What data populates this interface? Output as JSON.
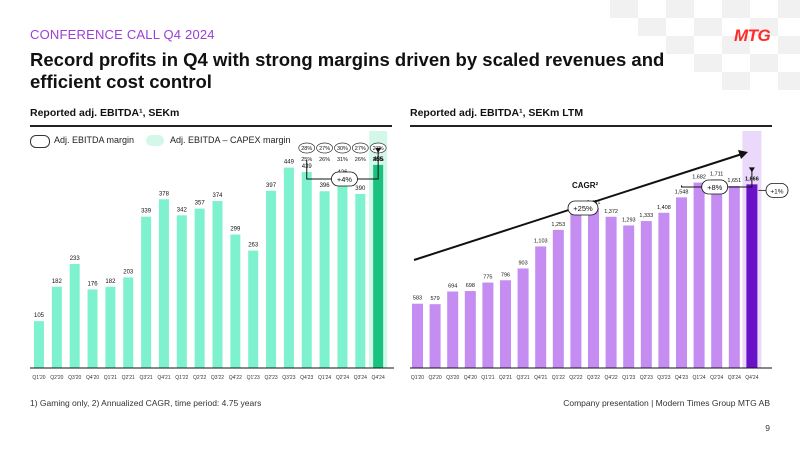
{
  "header": {
    "conference_label": "CONFERENCE CALL Q4 2024",
    "logo_text": "MTG",
    "headline": "Record profits in Q4 with strong margins driven by scaled revenues and efficient cost control"
  },
  "left_chart": {
    "title": "Reported adj. EBITDA¹, SEKm",
    "legend": [
      "Adj. EBITDA margin",
      "Adj. EBITDA – CAPEX margin"
    ],
    "margins_top": [
      "28%",
      "27%",
      "30%",
      "27%",
      "27%"
    ],
    "margins_bottom": [
      "25%",
      "26%",
      "31%",
      "26%",
      "26%"
    ],
    "growth_label": "+4%"
  },
  "right_chart": {
    "title": "Reported adj. EBITDA¹, SEKm LTM",
    "cagr_label": "CAGR²",
    "cagr_value": "+25%",
    "growth_label": "+8%",
    "side_label": "+1%"
  },
  "footer": {
    "footnote": "1) Gaming only, 2) Annualized CAGR, time period: 4.75 years",
    "company": "Company presentation | Modern Times Group MTG AB",
    "page_number": "9"
  },
  "colors": {
    "accent_purple": "#9b3fd6",
    "left_bar": "#7ef2cf",
    "left_bar_highlight": "#19c27f",
    "left_band": "#d3f8ea",
    "right_bar": "#c58cf2",
    "right_bar_highlight": "#6a12c8",
    "right_band": "#ead9fb",
    "logo_red": "#ff2a2a"
  },
  "chart_data": [
    {
      "type": "bar",
      "title": "Reported adj. EBITDA¹, SEKm",
      "categories": [
        "Q1'20",
        "Q2'20",
        "Q3'20",
        "Q4'20",
        "Q1'21",
        "Q2'21",
        "Q3'21",
        "Q4'21",
        "Q1'22",
        "Q2'22",
        "Q3'22",
        "Q4'22",
        "Q1'23",
        "Q2'23",
        "Q3'23",
        "Q4'23",
        "Q1'24",
        "Q2'24",
        "Q3'24",
        "Q4'24"
      ],
      "series": [
        {
          "values": [
            105,
            182,
            233,
            176,
            182,
            203,
            339,
            378,
            342,
            357,
            374,
            299,
            263,
            397,
            449,
            439,
            396,
            426,
            390,
            455
          ]
        }
      ],
      "ylim": [
        0,
        560
      ],
      "grid": false,
      "highlight_index": 19
    },
    {
      "type": "bar",
      "title": "Reported adj. EBITDA¹, SEKm LTM",
      "categories": [
        "Q1'20",
        "Q2'20",
        "Q3'20",
        "Q4'20",
        "Q1'21",
        "Q2'21",
        "Q3'21",
        "Q4'21",
        "Q1'22",
        "Q2'22",
        "Q3'22",
        "Q4'22",
        "Q1'23",
        "Q2'23",
        "Q3'23",
        "Q4'23",
        "Q1'24",
        "Q2'24",
        "Q3'24",
        "Q4'24"
      ],
      "series": [
        {
          "values": [
            583,
            579,
            694,
            698,
            775,
            796,
            903,
            1103,
            1253,
            1416,
            1451,
            1372,
            1293,
            1333,
            1408,
            1548,
            1682,
            1711,
            1651,
            1666
          ]
        }
      ],
      "data_labels": [
        "583",
        "579",
        "694",
        "698",
        "775",
        "796",
        "903",
        "1,103",
        "1,253",
        "1,416",
        "1,451",
        "1,372",
        "1,293",
        "1,333",
        "1,408",
        "1,548",
        "1,682",
        "1,711",
        "1,651",
        "1,666"
      ],
      "ylim": [
        0,
        2150
      ],
      "grid": false,
      "highlight_index": 19
    }
  ]
}
